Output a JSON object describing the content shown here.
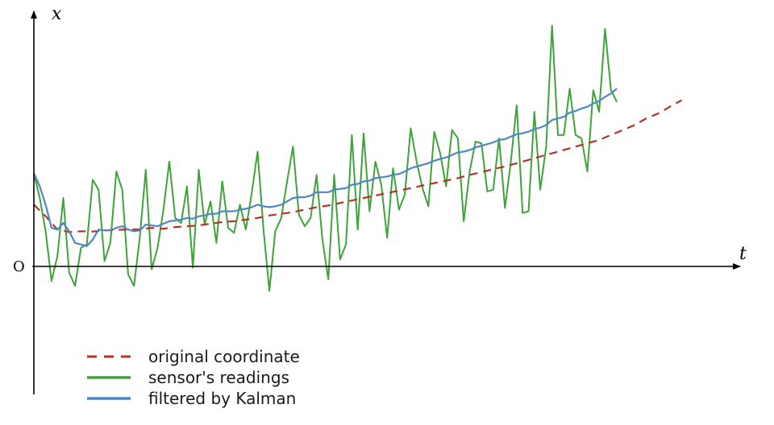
{
  "chart_data": {
    "type": "line",
    "title": "",
    "xlabel": "t",
    "ylabel": "x",
    "origin_label": "O",
    "grid": false,
    "legend_position": "bottom-left",
    "xlim": [
      0,
      112
    ],
    "ylim": [
      -6.2,
      12
    ],
    "series": [
      {
        "name": "original coordinate",
        "style": "dashed",
        "color": "#b5322a",
        "points": [
          [
            0,
            1.6
          ],
          [
            2,
            0.9
          ],
          [
            4,
            0.1
          ],
          [
            6,
            -0.05
          ],
          [
            8,
            0
          ],
          [
            10,
            -0.02
          ],
          [
            12,
            0.05
          ],
          [
            14,
            0.08
          ],
          [
            16,
            0.1
          ],
          [
            18,
            0.12
          ],
          [
            20,
            0.2
          ],
          [
            22,
            0.15
          ],
          [
            24,
            0.25
          ],
          [
            26,
            0.3
          ],
          [
            28,
            0.35
          ],
          [
            30,
            0.45
          ],
          [
            32,
            0.55
          ],
          [
            34,
            0.6
          ],
          [
            36,
            0.7
          ],
          [
            38,
            0.8
          ],
          [
            40,
            0.95
          ],
          [
            42,
            1.05
          ],
          [
            44,
            1.15
          ],
          [
            46,
            1.3
          ],
          [
            48,
            1.45
          ],
          [
            50,
            1.55
          ],
          [
            52,
            1.7
          ],
          [
            54,
            1.85
          ],
          [
            56,
            2.0
          ],
          [
            58,
            2.15
          ],
          [
            60,
            2.3
          ],
          [
            62,
            2.45
          ],
          [
            64,
            2.6
          ],
          [
            66,
            2.75
          ],
          [
            68,
            2.9
          ],
          [
            70,
            3.05
          ],
          [
            72,
            3.2
          ],
          [
            74,
            3.4
          ],
          [
            76,
            3.55
          ],
          [
            78,
            3.75
          ],
          [
            80,
            3.9
          ],
          [
            82,
            4.1
          ],
          [
            84,
            4.3
          ],
          [
            86,
            4.5
          ],
          [
            88,
            4.7
          ],
          [
            90,
            4.9
          ],
          [
            92,
            5.1
          ],
          [
            94,
            5.3
          ],
          [
            96,
            5.5
          ],
          [
            98,
            5.8
          ],
          [
            100,
            6.1
          ],
          [
            102,
            6.4
          ],
          [
            104,
            6.8
          ],
          [
            106,
            7.1
          ],
          [
            108,
            7.5
          ],
          [
            110,
            7.9
          ]
        ]
      },
      {
        "name": "sensor's readings",
        "style": "solid",
        "color": "#3da33a",
        "points": [
          [
            0,
            3.5
          ],
          [
            1,
            2.0
          ],
          [
            2,
            0.0
          ],
          [
            3,
            -3.0
          ],
          [
            4,
            -1.5
          ],
          [
            5,
            2.0
          ],
          [
            6,
            -2.5
          ],
          [
            7,
            -3.3
          ],
          [
            8,
            -1.0
          ],
          [
            9,
            -0.8
          ],
          [
            10,
            3.1
          ],
          [
            11,
            2.5
          ],
          [
            12,
            -1.8
          ],
          [
            13,
            -0.7
          ],
          [
            14,
            3.6
          ],
          [
            15,
            2.5
          ],
          [
            16,
            -2.6
          ],
          [
            17,
            -3.3
          ],
          [
            18,
            -0.3
          ],
          [
            19,
            3.7
          ],
          [
            20,
            -2.3
          ],
          [
            21,
            -1.0
          ],
          [
            22,
            1.3
          ],
          [
            23,
            4.2
          ],
          [
            24,
            0.8
          ],
          [
            25,
            0.5
          ],
          [
            26,
            2.7
          ],
          [
            27,
            -2.2
          ],
          [
            28,
            3.7
          ],
          [
            29,
            0.4
          ],
          [
            30,
            1.8
          ],
          [
            31,
            -0.7
          ],
          [
            32,
            3.0
          ],
          [
            33,
            0.2
          ],
          [
            34,
            -0.1
          ],
          [
            35,
            1.6
          ],
          [
            36,
            0.1
          ],
          [
            37,
            2.3
          ],
          [
            38,
            4.8
          ],
          [
            39,
            0.1
          ],
          [
            40,
            -3.6
          ],
          [
            41,
            0.0
          ],
          [
            42,
            0.8
          ],
          [
            43,
            3.0
          ],
          [
            44,
            5.1
          ],
          [
            45,
            1.0
          ],
          [
            46,
            0.3
          ],
          [
            47,
            0.8
          ],
          [
            48,
            3.4
          ],
          [
            49,
            -0.5
          ],
          [
            50,
            -2.9
          ],
          [
            51,
            3.4
          ],
          [
            52,
            -1.7
          ],
          [
            53,
            -0.8
          ],
          [
            54,
            5.8
          ],
          [
            55,
            0.1
          ],
          [
            56,
            5.9
          ],
          [
            57,
            1.2
          ],
          [
            58,
            4.2
          ],
          [
            59,
            2.8
          ],
          [
            60,
            -0.4
          ],
          [
            61,
            3.8
          ],
          [
            62,
            1.3
          ],
          [
            63,
            2.2
          ],
          [
            64,
            6.2
          ],
          [
            65,
            4.2
          ],
          [
            66,
            2.6
          ],
          [
            67,
            1.5
          ],
          [
            68,
            6.0
          ],
          [
            69,
            4.7
          ],
          [
            70,
            2.7
          ],
          [
            71,
            6.1
          ],
          [
            72,
            5.6
          ],
          [
            73,
            0.6
          ],
          [
            74,
            3.6
          ],
          [
            75,
            5.4
          ],
          [
            76,
            5.3
          ],
          [
            77,
            2.4
          ],
          [
            78,
            2.5
          ],
          [
            79,
            5.6
          ],
          [
            80,
            1.4
          ],
          [
            81,
            4.2
          ],
          [
            82,
            7.6
          ],
          [
            83,
            1.1
          ],
          [
            84,
            1.2
          ],
          [
            85,
            7.2
          ],
          [
            86,
            2.5
          ],
          [
            87,
            5.1
          ],
          [
            88,
            12.4
          ],
          [
            89,
            5.8
          ],
          [
            90,
            5.8
          ],
          [
            91,
            8.6
          ],
          [
            92,
            5.8
          ],
          [
            93,
            5.6
          ],
          [
            94,
            3.6
          ],
          [
            95,
            8.5
          ],
          [
            96,
            7.2
          ],
          [
            97,
            12.2
          ],
          [
            98,
            8.5
          ],
          [
            99,
            7.8
          ]
        ]
      },
      {
        "name": "filtered by Kalman",
        "style": "solid",
        "color": "#4f86c6",
        "points": [
          [
            0,
            3.5
          ],
          [
            1,
            2.7
          ],
          [
            2,
            1.6
          ],
          [
            3,
            0.2
          ],
          [
            4,
            0.1
          ],
          [
            5,
            0.5
          ],
          [
            6,
            0.0
          ],
          [
            7,
            -0.7
          ],
          [
            8,
            -0.8
          ],
          [
            9,
            -0.9
          ],
          [
            10,
            -0.5
          ],
          [
            11,
            0.1
          ],
          [
            12,
            0.05
          ],
          [
            13,
            0.05
          ],
          [
            14,
            0.2
          ],
          [
            15,
            0.3
          ],
          [
            16,
            0.1
          ],
          [
            17,
            0.0
          ],
          [
            18,
            0.05
          ],
          [
            19,
            0.4
          ],
          [
            20,
            0.35
          ],
          [
            21,
            0.3
          ],
          [
            22,
            0.45
          ],
          [
            23,
            0.6
          ],
          [
            24,
            0.65
          ],
          [
            25,
            0.7
          ],
          [
            26,
            0.8
          ],
          [
            27,
            0.75
          ],
          [
            28,
            0.9
          ],
          [
            29,
            0.95
          ],
          [
            30,
            1.05
          ],
          [
            31,
            1.05
          ],
          [
            32,
            1.2
          ],
          [
            33,
            1.2
          ],
          [
            34,
            1.2
          ],
          [
            35,
            1.3
          ],
          [
            36,
            1.35
          ],
          [
            37,
            1.45
          ],
          [
            38,
            1.6
          ],
          [
            39,
            1.5
          ],
          [
            40,
            1.45
          ],
          [
            41,
            1.5
          ],
          [
            42,
            1.6
          ],
          [
            43,
            1.8
          ],
          [
            44,
            2.0
          ],
          [
            45,
            2.05
          ],
          [
            46,
            2.05
          ],
          [
            47,
            2.15
          ],
          [
            48,
            2.35
          ],
          [
            49,
            2.35
          ],
          [
            50,
            2.35
          ],
          [
            51,
            2.5
          ],
          [
            52,
            2.55
          ],
          [
            53,
            2.6
          ],
          [
            54,
            2.8
          ],
          [
            55,
            2.85
          ],
          [
            56,
            3.0
          ],
          [
            57,
            3.05
          ],
          [
            58,
            3.2
          ],
          [
            59,
            3.25
          ],
          [
            60,
            3.3
          ],
          [
            61,
            3.4
          ],
          [
            62,
            3.45
          ],
          [
            63,
            3.6
          ],
          [
            64,
            3.8
          ],
          [
            65,
            3.9
          ],
          [
            66,
            4.0
          ],
          [
            67,
            4.1
          ],
          [
            68,
            4.25
          ],
          [
            69,
            4.35
          ],
          [
            70,
            4.45
          ],
          [
            71,
            4.6
          ],
          [
            72,
            4.75
          ],
          [
            73,
            4.8
          ],
          [
            74,
            4.9
          ],
          [
            75,
            5.05
          ],
          [
            76,
            5.15
          ],
          [
            77,
            5.25
          ],
          [
            78,
            5.35
          ],
          [
            79,
            5.5
          ],
          [
            80,
            5.55
          ],
          [
            81,
            5.7
          ],
          [
            82,
            5.85
          ],
          [
            83,
            5.9
          ],
          [
            84,
            6.0
          ],
          [
            85,
            6.15
          ],
          [
            86,
            6.25
          ],
          [
            87,
            6.4
          ],
          [
            88,
            6.7
          ],
          [
            89,
            6.8
          ],
          [
            90,
            6.9
          ],
          [
            91,
            7.15
          ],
          [
            92,
            7.25
          ],
          [
            93,
            7.4
          ],
          [
            94,
            7.5
          ],
          [
            95,
            7.7
          ],
          [
            96,
            7.85
          ],
          [
            97,
            8.1
          ],
          [
            98,
            8.3
          ],
          [
            99,
            8.6
          ]
        ]
      }
    ]
  }
}
